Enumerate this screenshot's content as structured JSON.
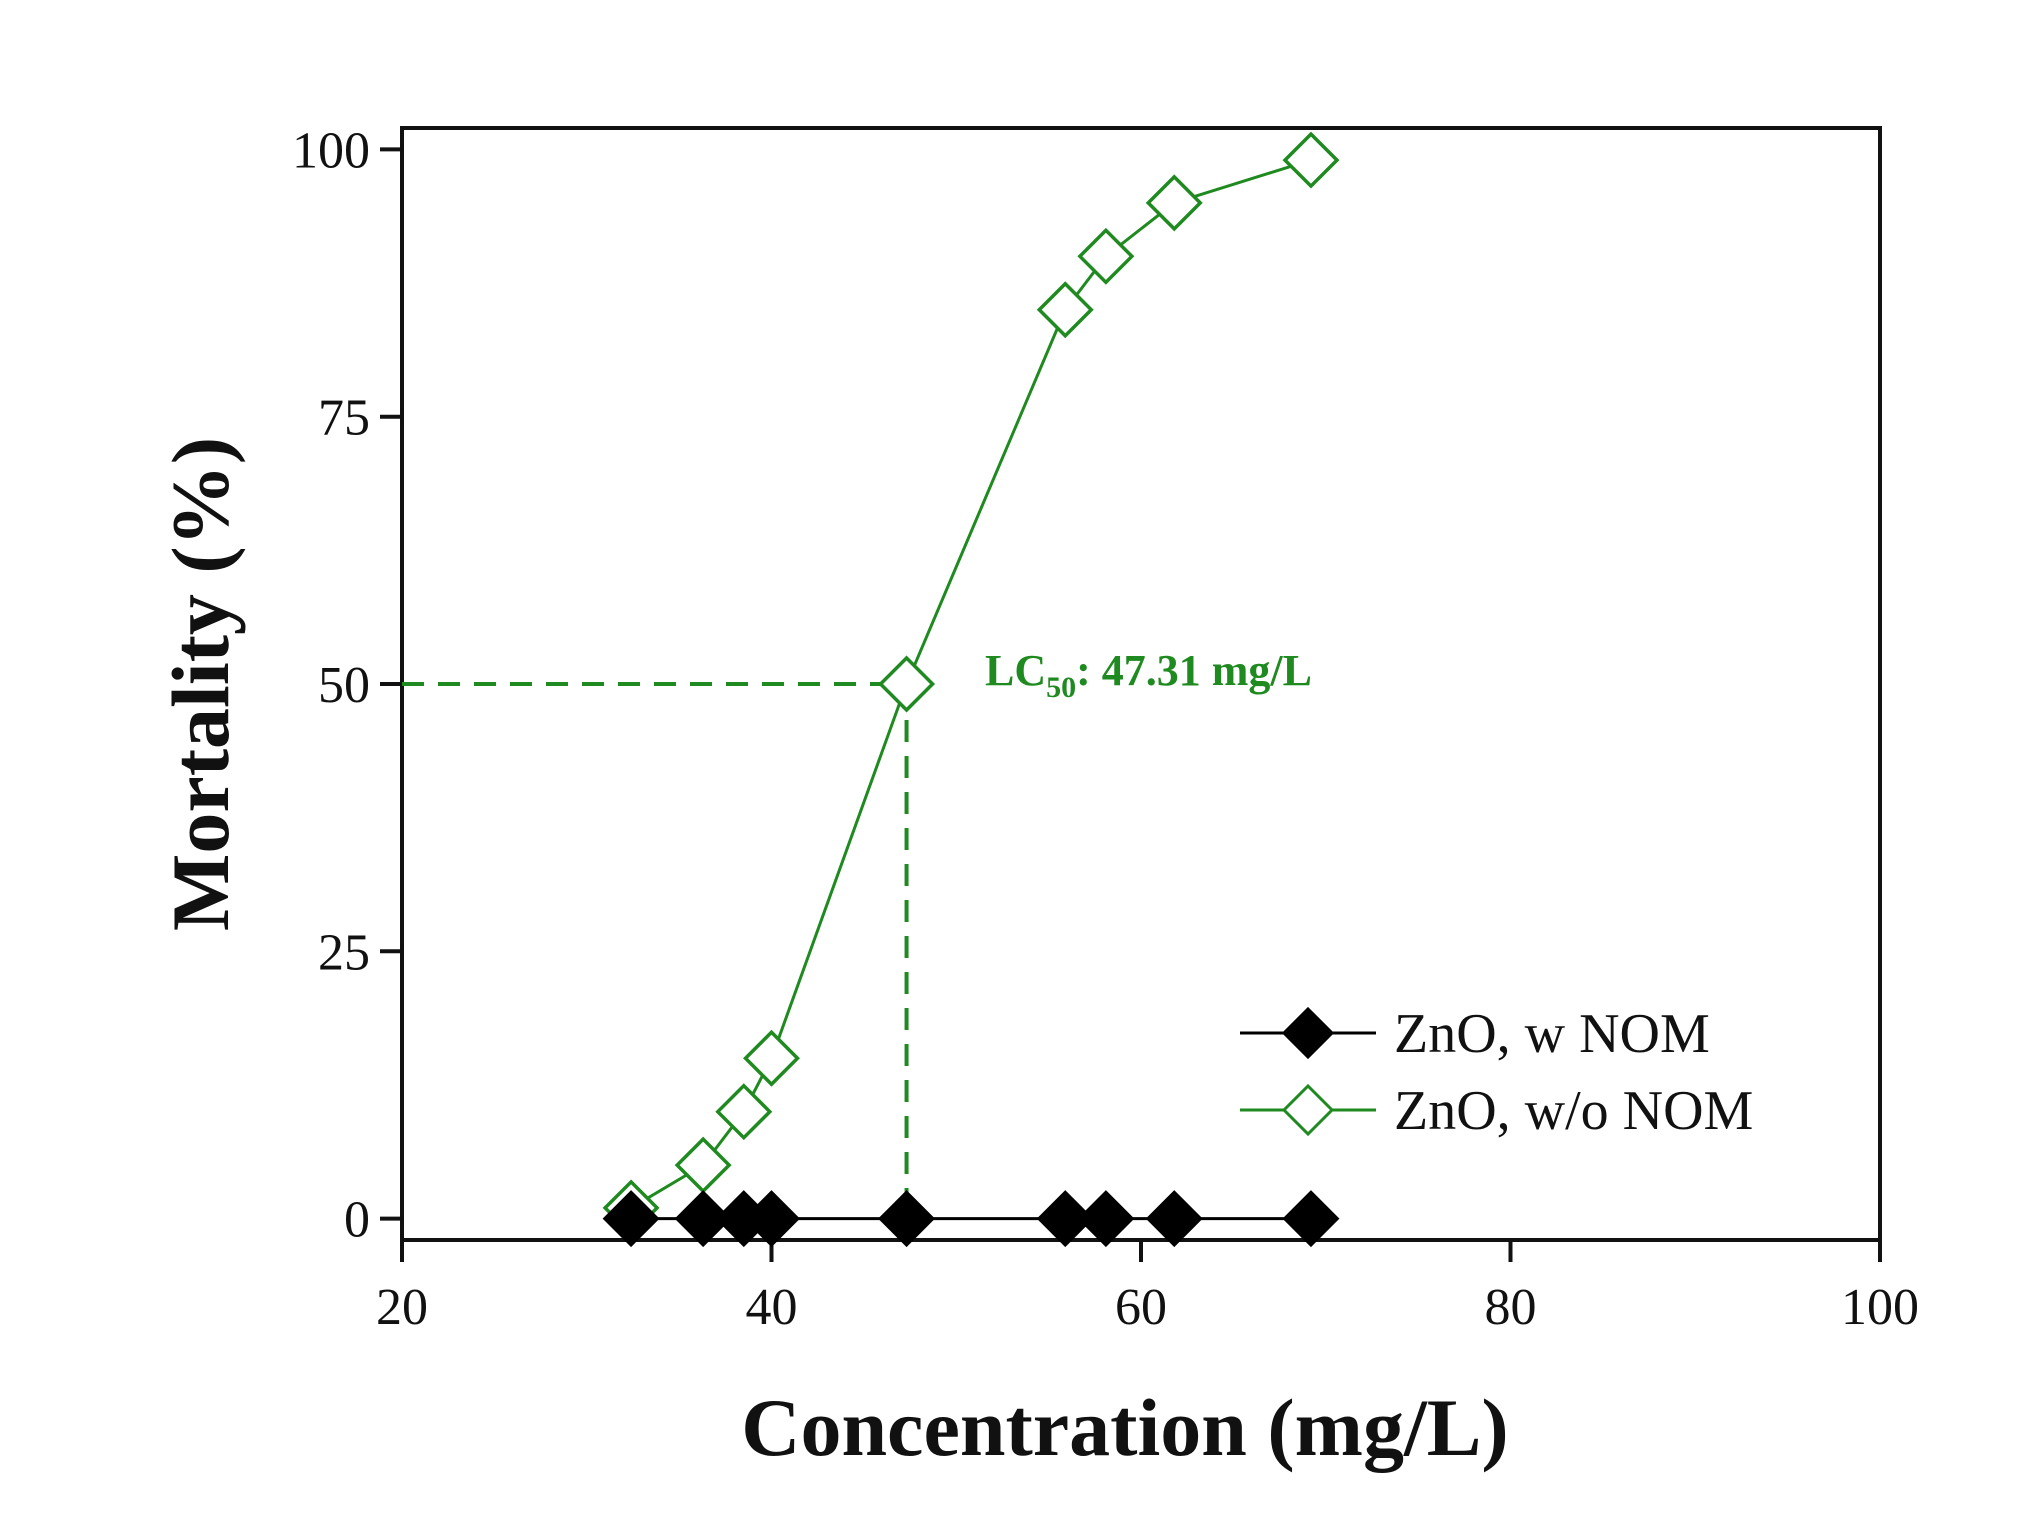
{
  "chart_data": {
    "type": "scatter",
    "title": "",
    "xlabel": "Concentration (mg/L)",
    "ylabel": "Mortality (%)",
    "xlim": [
      20,
      100
    ],
    "ylim": [
      -2,
      102
    ],
    "xticks": [
      20,
      40,
      60,
      80,
      100
    ],
    "yticks": [
      0,
      25,
      50,
      75,
      100
    ],
    "grid": false,
    "legend_position": "bottom-right",
    "series": [
      {
        "name": "ZnO, w NOM",
        "marker": "filled-diamond",
        "color": "#000000",
        "x": [
          32.4,
          36.3,
          38.5,
          40.0,
          47.31,
          55.9,
          58.1,
          61.8,
          69.2
        ],
        "y": [
          0,
          0,
          0,
          0,
          0,
          0,
          0,
          0,
          0
        ]
      },
      {
        "name": "ZnO, w/o NOM",
        "marker": "open-diamond",
        "color": "#1f8a1f",
        "x": [
          32.4,
          36.3,
          38.5,
          40.0,
          47.31,
          55.9,
          58.1,
          61.8,
          69.2
        ],
        "y": [
          1,
          5,
          10,
          15,
          50,
          85,
          90,
          95,
          99
        ]
      }
    ],
    "annotations": [
      {
        "label": "LC",
        "subscript": "50",
        "text": ": 47.31 mg/L",
        "x": 47.31,
        "y": 50,
        "color": "#1f8a1f"
      }
    ]
  }
}
